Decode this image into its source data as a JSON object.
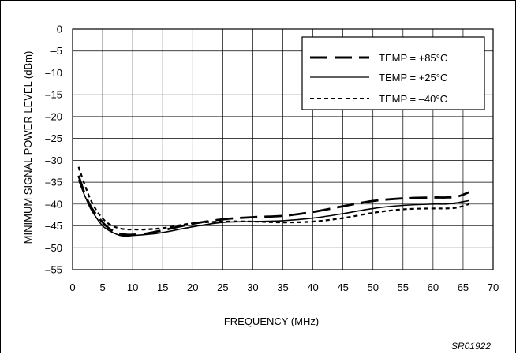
{
  "chart_data": {
    "type": "line",
    "xlabel": "FREQUENCY (MHz)",
    "ylabel": "MINIMUM SIGNAL POWER LEVEL (dBm)",
    "xlim": [
      0,
      70
    ],
    "ylim": [
      -55,
      0
    ],
    "xticks": [
      0,
      5,
      10,
      15,
      20,
      25,
      30,
      35,
      40,
      45,
      50,
      55,
      60,
      65,
      70
    ],
    "yticks": [
      0,
      -5,
      -10,
      -15,
      -20,
      -25,
      -30,
      -35,
      -40,
      -45,
      -50,
      -55
    ],
    "xtick_labels": [
      "0",
      "5",
      "10",
      "15",
      "20",
      "25",
      "30",
      "35",
      "40",
      "45",
      "50",
      "55",
      "60",
      "65",
      "70"
    ],
    "ytick_labels": [
      "0",
      "–5",
      "–10",
      "–15",
      "–20",
      "–25",
      "–30",
      "–35",
      "–40",
      "–45",
      "–50",
      "–55"
    ],
    "grid": true,
    "legend_position": "top-right",
    "series": [
      {
        "name": "TEMP = +85°C",
        "style": "long-dash",
        "x": [
          1,
          2,
          3,
          4,
          5,
          6,
          7,
          8,
          9,
          10,
          12,
          15,
          20,
          25,
          30,
          35,
          40,
          45,
          50,
          55,
          60,
          62,
          64,
          66
        ],
        "y": [
          -33.5,
          -37.5,
          -40.5,
          -42.5,
          -44.2,
          -45.5,
          -46.3,
          -46.8,
          -47,
          -47,
          -46.8,
          -46,
          -44.5,
          -43.5,
          -43,
          -42.7,
          -41.8,
          -40.5,
          -39.3,
          -38.7,
          -38.5,
          -38.5,
          -38.3,
          -37.3
        ]
      },
      {
        "name": "TEMP = +25°C",
        "style": "solid",
        "x": [
          1,
          2,
          3,
          4,
          5,
          6,
          7,
          8,
          9,
          10,
          12,
          15,
          20,
          25,
          30,
          35,
          40,
          45,
          50,
          55,
          60,
          62,
          64,
          66
        ],
        "y": [
          -34.5,
          -38,
          -41,
          -43.2,
          -45,
          -46,
          -46.7,
          -47.2,
          -47.3,
          -47.2,
          -47,
          -46.5,
          -45.2,
          -44.2,
          -44,
          -43.8,
          -43.2,
          -42.2,
          -41,
          -40.3,
          -40,
          -40,
          -39.7,
          -39.2
        ]
      },
      {
        "name": "TEMP = –40°C",
        "style": "short-dash",
        "x": [
          1,
          2,
          3,
          4,
          5,
          6,
          7,
          8,
          9,
          10,
          12,
          15,
          20,
          25,
          30,
          35,
          40,
          45,
          50,
          55,
          60,
          62,
          64,
          66
        ],
        "y": [
          -31.5,
          -35.5,
          -39,
          -41.5,
          -43.3,
          -44.5,
          -45.2,
          -45.6,
          -45.8,
          -45.8,
          -45.8,
          -45.5,
          -44.4,
          -44,
          -44,
          -44.2,
          -44,
          -43.2,
          -42,
          -41.2,
          -41,
          -41,
          -40.8,
          -40
        ]
      }
    ],
    "annotation": "SR01922"
  }
}
